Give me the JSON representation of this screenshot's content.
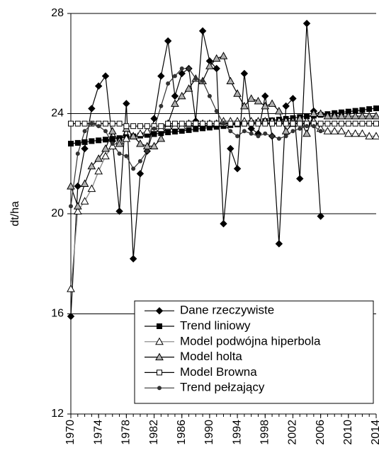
{
  "chart_data": {
    "type": "line",
    "y_label": "dt/ha",
    "x": [
      1970,
      1971,
      1972,
      1973,
      1974,
      1975,
      1976,
      1977,
      1978,
      1979,
      1980,
      1981,
      1982,
      1983,
      1984,
      1985,
      1986,
      1987,
      1988,
      1989,
      1990,
      1991,
      1992,
      1993,
      1994,
      1995,
      1996,
      1997,
      1998,
      1999,
      2000,
      2001,
      2002,
      2003,
      2004,
      2005,
      2006,
      2007,
      2008,
      2009,
      2010,
      2011,
      2012,
      2013,
      2014
    ],
    "xlim": [
      1970,
      2014
    ],
    "xticks": [
      1970,
      1974,
      1978,
      1982,
      1986,
      1990,
      1994,
      1998,
      2002,
      2006,
      2010,
      2014
    ],
    "ylim": [
      12,
      28
    ],
    "yticks": [
      12,
      16,
      20,
      24,
      28
    ],
    "grid": true,
    "legend": "lower right",
    "series": [
      {
        "name": "Dane rzeczywiste",
        "color": "#000000",
        "marker": "diamond",
        "values": [
          15.9,
          21.1,
          22.6,
          24.2,
          25.1,
          25.5,
          22.9,
          20.1,
          24.4,
          18.2,
          21.6,
          22.5,
          23.8,
          25.5,
          26.9,
          24.7,
          25.6,
          25.8,
          23.7,
          27.3,
          26.1,
          25.8,
          19.6,
          22.6,
          21.8,
          25.6,
          23.4,
          23.2,
          24.7,
          23.1,
          18.8,
          24.3,
          24.6,
          21.4,
          27.6,
          24.1,
          19.9,
          null,
          null,
          null,
          null,
          null,
          null,
          null,
          null
        ]
      },
      {
        "name": "Trend liniowy",
        "color": "#000000",
        "marker": "square",
        "values": [
          22.8,
          22.83,
          22.86,
          22.9,
          22.93,
          22.96,
          22.99,
          23.02,
          23.06,
          23.09,
          23.12,
          23.15,
          23.18,
          23.22,
          23.25,
          23.28,
          23.31,
          23.34,
          23.38,
          23.41,
          23.44,
          23.47,
          23.5,
          23.54,
          23.57,
          23.6,
          23.63,
          23.66,
          23.7,
          23.73,
          23.76,
          23.79,
          23.82,
          23.86,
          23.89,
          23.92,
          23.95,
          23.98,
          24.02,
          24.05,
          24.08,
          24.11,
          24.14,
          24.18,
          24.21
        ]
      },
      {
        "name": "Model podwójna hiperbola",
        "color": "#808080",
        "marker": "triangle-open",
        "values": [
          17.0,
          20.1,
          20.5,
          21.0,
          21.7,
          22.3,
          22.7,
          22.9,
          23.0,
          23.1,
          23.2,
          23.3,
          23.4,
          23.4,
          23.5,
          23.5,
          23.5,
          23.6,
          23.6,
          23.6,
          23.6,
          23.6,
          23.7,
          23.7,
          23.7,
          23.7,
          23.7,
          23.7,
          23.7,
          23.7,
          23.7,
          23.7,
          23.7,
          23.7,
          23.7,
          23.7,
          23.4,
          23.3,
          23.3,
          23.3,
          23.2,
          23.2,
          23.2,
          23.1,
          23.1
        ]
      },
      {
        "name": "Model holta",
        "color": "#000000",
        "marker": "triangle",
        "values": [
          21.1,
          20.3,
          21.2,
          21.9,
          22.2,
          22.6,
          23.3,
          22.8,
          23.4,
          23.1,
          22.8,
          22.7,
          22.7,
          23.0,
          23.6,
          24.4,
          24.7,
          25.0,
          25.4,
          25.3,
          25.9,
          26.2,
          26.3,
          25.3,
          24.8,
          24.3,
          24.6,
          24.5,
          24.3,
          24.4,
          24.1,
          23.3,
          23.6,
          23.8,
          23.2,
          24.0,
          24.0,
          23.9,
          23.9,
          23.9,
          23.9,
          23.9,
          23.9,
          23.9,
          23.9
        ]
      },
      {
        "name": "Model Browna",
        "color": "#000000",
        "marker": "square-open",
        "values": [
          23.6,
          23.6,
          23.6,
          23.6,
          23.6,
          23.6,
          23.6,
          23.6,
          23.5,
          23.5,
          23.5,
          23.5,
          23.5,
          23.5,
          23.6,
          23.6,
          23.6,
          23.6,
          23.6,
          23.6,
          23.6,
          23.6,
          23.6,
          23.6,
          23.6,
          23.6,
          23.6,
          23.6,
          23.6,
          23.6,
          23.6,
          23.6,
          23.6,
          23.6,
          23.6,
          23.6,
          23.6,
          23.6,
          23.6,
          23.6,
          23.6,
          23.6,
          23.6,
          23.6,
          23.6
        ]
      },
      {
        "name": "Trend pełzający",
        "color": "#333333",
        "marker": "circle",
        "values": [
          20.3,
          22.4,
          23.3,
          23.6,
          23.5,
          23.3,
          22.8,
          22.4,
          22.3,
          21.8,
          22.1,
          22.5,
          23.4,
          24.3,
          25.2,
          25.5,
          25.8,
          25.8,
          25.4,
          25.3,
          24.7,
          24.1,
          23.6,
          23.3,
          23.1,
          23.3,
          23.2,
          23.1,
          23.2,
          23.1,
          23.0,
          23.1,
          23.3,
          23.4,
          23.5,
          23.5,
          23.3,
          null,
          null,
          null,
          null,
          null,
          null,
          null,
          null
        ]
      }
    ]
  }
}
